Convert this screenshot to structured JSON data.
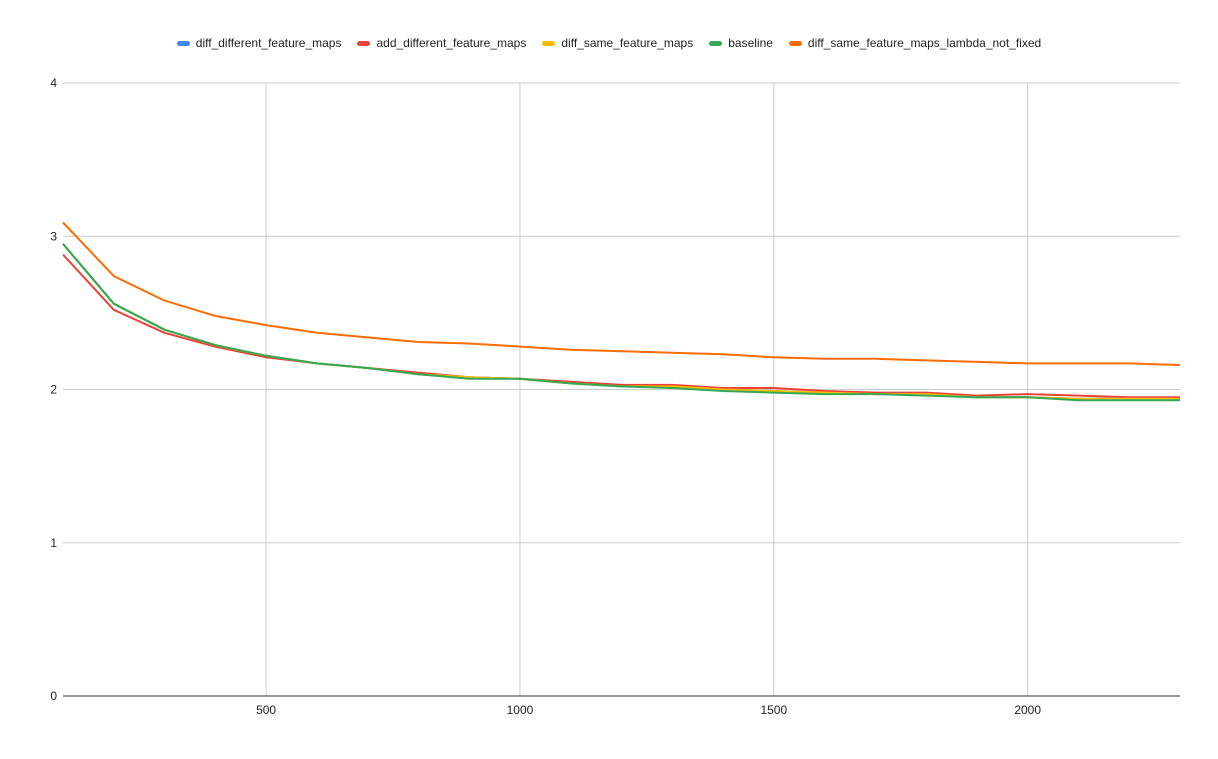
{
  "chart_data": {
    "type": "line",
    "xlim": [
      100,
      2300
    ],
    "ylim": [
      0,
      4
    ],
    "xticks": [
      500,
      1000,
      1500,
      2000
    ],
    "yticks": [
      0,
      1,
      2,
      3,
      4
    ],
    "grid": true,
    "legend_position": "top-center",
    "x": [
      100,
      200,
      300,
      400,
      500,
      600,
      700,
      800,
      900,
      1000,
      1100,
      1200,
      1300,
      1400,
      1500,
      1600,
      1700,
      1800,
      1900,
      2000,
      2100,
      2200,
      2300
    ],
    "series": [
      {
        "name": "diff_different_feature_maps",
        "color": "#4285f4",
        "values": [
          2.95,
          2.56,
          2.39,
          2.29,
          2.22,
          2.17,
          2.14,
          2.1,
          2.08,
          2.07,
          2.04,
          2.02,
          2.02,
          2.0,
          1.99,
          1.98,
          1.97,
          1.97,
          1.95,
          1.95,
          1.94,
          1.94,
          1.94
        ]
      },
      {
        "name": "add_different_feature_maps",
        "color": "#ea4335",
        "values": [
          2.88,
          2.52,
          2.37,
          2.28,
          2.21,
          2.17,
          2.14,
          2.11,
          2.08,
          2.07,
          2.05,
          2.03,
          2.03,
          2.01,
          2.01,
          1.99,
          1.98,
          1.98,
          1.96,
          1.97,
          1.96,
          1.95,
          1.95
        ]
      },
      {
        "name": "diff_same_feature_maps",
        "color": "#fbbc04",
        "values": [
          2.95,
          2.56,
          2.39,
          2.29,
          2.22,
          2.17,
          2.14,
          2.1,
          2.08,
          2.07,
          2.04,
          2.02,
          2.02,
          2.0,
          1.99,
          1.98,
          1.97,
          1.97,
          1.95,
          1.95,
          1.94,
          1.94,
          1.94
        ]
      },
      {
        "name": "baseline",
        "color": "#34a853",
        "values": [
          2.95,
          2.56,
          2.39,
          2.29,
          2.22,
          2.17,
          2.14,
          2.1,
          2.07,
          2.07,
          2.04,
          2.02,
          2.01,
          1.99,
          1.98,
          1.97,
          1.97,
          1.96,
          1.95,
          1.95,
          1.93,
          1.93,
          1.93
        ]
      },
      {
        "name": "diff_same_feature_maps_lambda_not_fixed",
        "color": "#ff6d01",
        "values": [
          3.09,
          2.74,
          2.58,
          2.48,
          2.42,
          2.37,
          2.34,
          2.31,
          2.3,
          2.28,
          2.26,
          2.25,
          2.24,
          2.23,
          2.21,
          2.2,
          2.2,
          2.19,
          2.18,
          2.17,
          2.17,
          2.17,
          2.16
        ]
      }
    ]
  }
}
